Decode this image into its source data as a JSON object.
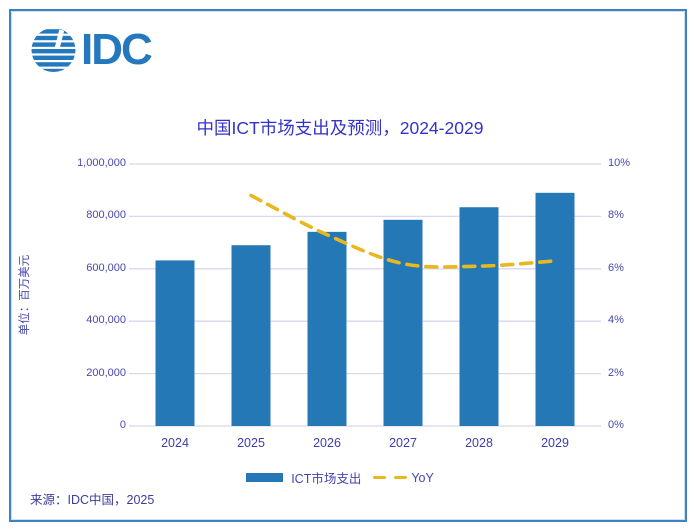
{
  "logo": {
    "text": "IDC"
  },
  "chart": {
    "title": "中国ICT市场支出及预测，2024-2029",
    "y_axis_title": "单位：百万美元",
    "legend": [
      {
        "label": "ICT市场支出",
        "type": "bar"
      },
      {
        "label": "YoY",
        "type": "line"
      }
    ],
    "source": "来源：IDC中国，2025"
  },
  "chart_data": {
    "type": "bar",
    "title": "中国ICT市场支出及预测，2024-2029",
    "categories": [
      "2024",
      "2025",
      "2026",
      "2027",
      "2028",
      "2029"
    ],
    "series": [
      {
        "name": "ICT市场支出",
        "type": "bar",
        "axis": "left",
        "values": [
          632000,
          690000,
          741000,
          787000,
          835000,
          890000
        ]
      },
      {
        "name": "YoY",
        "type": "line",
        "axis": "right",
        "values": [
          null,
          8.8,
          7.3,
          6.2,
          6.1,
          6.3
        ]
      }
    ],
    "left_axis": {
      "label": "单位：百万美元",
      "min": 0,
      "max": 1000000,
      "tick_labels": [
        "0",
        "200,000",
        "400,000",
        "600,000",
        "800,000",
        "1,000,000"
      ]
    },
    "right_axis": {
      "min": 0,
      "max": 10,
      "tick_labels": [
        "0%",
        "2%",
        "4%",
        "6%",
        "8%",
        "10%"
      ]
    },
    "grid": true,
    "legend_position": "bottom"
  },
  "colors": {
    "bar": "#2378b5",
    "line": "#e9b71f",
    "grid": "#d8d8ef",
    "axis_text": "#4747b2",
    "title_text": "#3232cc",
    "border": "#3f81c1",
    "logo": "#2478bd"
  }
}
